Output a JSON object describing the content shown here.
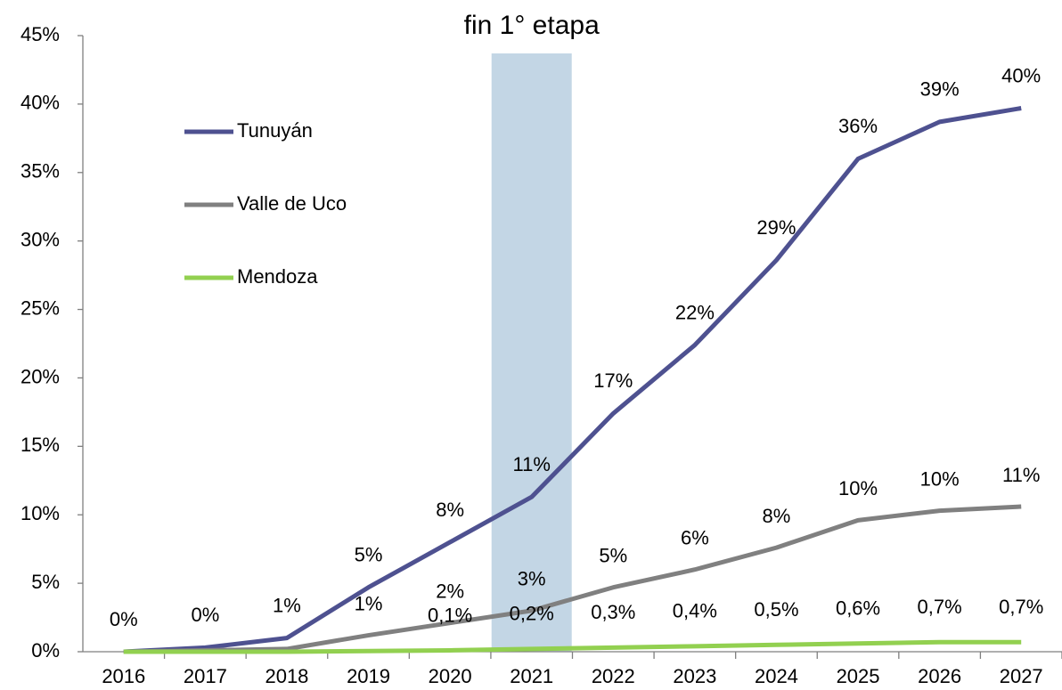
{
  "chart_data": {
    "type": "line",
    "highlight": {
      "label": "fin 1° etapa",
      "category": "2021",
      "color": "#c3d6e5"
    },
    "categories": [
      "2016",
      "2017",
      "2018",
      "2019",
      "2020",
      "2021",
      "2022",
      "2023",
      "2024",
      "2025",
      "2026",
      "2027"
    ],
    "series": [
      {
        "name": "Tunuyán",
        "color": "#4e5190",
        "values": [
          0,
          0.3,
          1.0,
          4.7,
          8.0,
          11.3,
          17.4,
          22.4,
          28.6,
          36.0,
          38.7,
          39.7
        ],
        "value_labels": [
          "0%",
          "0%",
          "1%",
          "5%",
          "8%",
          "11%",
          "17%",
          "22%",
          "29%",
          "36%",
          "39%",
          "40%"
        ]
      },
      {
        "name": "Valle de Uco",
        "color": "#808080",
        "values": [
          0,
          0.1,
          0.2,
          1.2,
          2.1,
          3.0,
          4.7,
          6.0,
          7.6,
          9.6,
          10.3,
          10.6
        ],
        "value_labels": [
          null,
          null,
          null,
          "1%",
          "2%",
          "3%",
          "5%",
          "6%",
          "8%",
          "10%",
          "10%",
          "11%"
        ]
      },
      {
        "name": "Mendoza",
        "color": "#92d050",
        "values": [
          0,
          0,
          0,
          0.05,
          0.1,
          0.2,
          0.3,
          0.4,
          0.5,
          0.6,
          0.7,
          0.7
        ],
        "value_labels": [
          null,
          null,
          null,
          null,
          "0,1%",
          "0,2%",
          "0,3%",
          "0,4%",
          "0,5%",
          "0,6%",
          "0,7%",
          "0,7%"
        ]
      }
    ],
    "ylim": [
      0,
      45
    ],
    "yticks": [
      {
        "value": 0,
        "label": "0%"
      },
      {
        "value": 5,
        "label": "5%"
      },
      {
        "value": 10,
        "label": "10%"
      },
      {
        "value": 15,
        "label": "15%"
      },
      {
        "value": 20,
        "label": "20%"
      },
      {
        "value": 25,
        "label": "25%"
      },
      {
        "value": 30,
        "label": "30%"
      },
      {
        "value": 35,
        "label": "35%"
      },
      {
        "value": 40,
        "label": "40%"
      },
      {
        "value": 45,
        "label": "45%"
      }
    ],
    "grid": false,
    "legend": "upper left"
  }
}
